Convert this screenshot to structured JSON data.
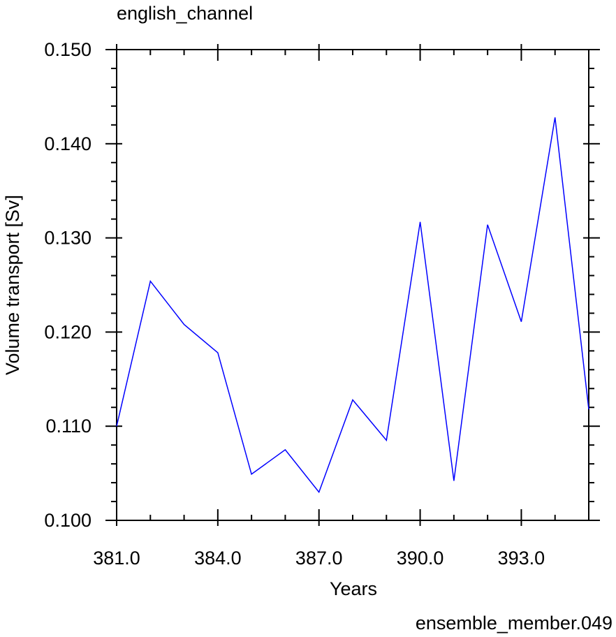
{
  "chart_data": {
    "type": "line",
    "title": "english_channel",
    "xlabel": "Years",
    "ylabel": "Volume transport [Sv]",
    "annotation": "ensemble_member.049",
    "annotation_color": "#0000ff",
    "line_color": "#0000ff",
    "xlim": [
      381,
      395
    ],
    "ylim": [
      0.1,
      0.15
    ],
    "x_ticks": [
      381,
      384,
      387,
      390,
      393
    ],
    "x_tick_labels": [
      "381.0",
      "384.0",
      "387.0",
      "390.0",
      "393.0"
    ],
    "y_ticks": [
      0.1,
      0.11,
      0.12,
      0.13,
      0.14,
      0.15
    ],
    "y_tick_labels": [
      "0.100",
      "0.110",
      "0.120",
      "0.130",
      "0.140",
      "0.150"
    ],
    "grid": false,
    "series": [
      {
        "x": [
          381,
          382,
          383,
          384,
          385,
          386,
          387,
          388,
          389,
          390,
          391,
          392,
          393,
          394,
          395
        ],
        "values": [
          0.11,
          0.1254,
          0.1208,
          0.1178,
          0.1049,
          0.1075,
          0.103,
          0.1128,
          0.1085,
          0.1317,
          0.1042,
          0.1314,
          0.1211,
          0.1428,
          0.1118
        ]
      }
    ]
  }
}
